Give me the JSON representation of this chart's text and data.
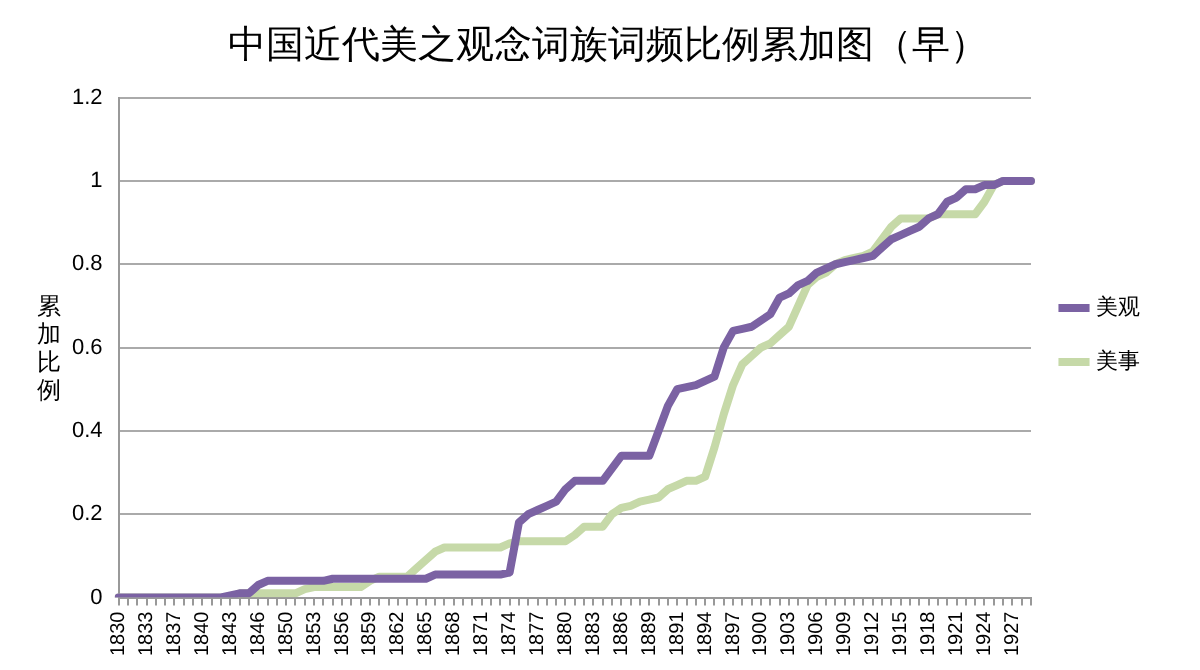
{
  "chart_data": {
    "type": "line",
    "title": "中国近代美之观念词族词频比例累加图（早）",
    "ylabel": "累加比例",
    "categories": [
      "1830",
      null,
      null,
      "1833",
      null,
      null,
      "1837",
      null,
      null,
      "1840",
      null,
      null,
      "1843",
      null,
      null,
      "1846",
      null,
      null,
      "1850",
      null,
      null,
      "1853",
      null,
      null,
      "1856",
      null,
      null,
      "1859",
      null,
      null,
      "1862",
      null,
      null,
      "1865",
      null,
      null,
      "1868",
      null,
      null,
      "1871",
      null,
      null,
      "1874",
      null,
      null,
      "1877",
      null,
      null,
      "1880",
      null,
      null,
      "1883",
      null,
      null,
      "1886",
      null,
      null,
      "1889",
      null,
      null,
      "1891",
      null,
      null,
      "1894",
      null,
      null,
      "1897",
      null,
      null,
      "1900",
      null,
      null,
      "1903",
      null,
      null,
      "1906",
      null,
      null,
      "1909",
      null,
      null,
      "1912",
      null,
      null,
      "1915",
      null,
      null,
      "1918",
      null,
      null,
      "1921",
      null,
      null,
      "1924",
      null,
      null,
      "1927",
      null,
      null
    ],
    "series": [
      {
        "name": "美观",
        "color": "#7b62a3",
        "values": [
          0,
          0,
          0,
          0,
          0,
          0,
          0,
          0,
          0,
          0,
          0,
          0,
          0.005,
          0.01,
          0.01,
          0.03,
          0.04,
          0.04,
          0.04,
          0.04,
          0.04,
          0.04,
          0.04,
          0.045,
          0.045,
          0.045,
          0.045,
          0.045,
          0.045,
          0.045,
          0.045,
          0.045,
          0.045,
          0.045,
          0.055,
          0.055,
          0.055,
          0.055,
          0.055,
          0.055,
          0.055,
          0.055,
          0.06,
          0.18,
          0.2,
          0.21,
          0.22,
          0.23,
          0.26,
          0.28,
          0.28,
          0.28,
          0.28,
          0.31,
          0.34,
          0.34,
          0.34,
          0.34,
          0.4,
          0.46,
          0.5,
          0.505,
          0.51,
          0.52,
          0.53,
          0.6,
          0.64,
          0.645,
          0.65,
          0.665,
          0.68,
          0.72,
          0.73,
          0.75,
          0.76,
          0.78,
          0.79,
          0.8,
          0.805,
          0.81,
          0.815,
          0.82,
          0.84,
          0.86,
          0.87,
          0.88,
          0.89,
          0.91,
          0.92,
          0.95,
          0.96,
          0.98,
          0.98,
          0.99,
          0.99,
          1,
          1,
          1,
          1
        ]
      },
      {
        "name": "美事",
        "color": "#c6d9a8",
        "values": [
          0,
          0,
          0,
          0,
          0,
          0,
          0,
          0,
          0,
          0,
          0,
          0,
          0,
          0.01,
          0.01,
          0.01,
          0.01,
          0.01,
          0.01,
          0.01,
          0.02,
          0.025,
          0.025,
          0.025,
          0.025,
          0.025,
          0.025,
          0.04,
          0.05,
          0.05,
          0.05,
          0.05,
          0.07,
          0.09,
          0.11,
          0.12,
          0.12,
          0.12,
          0.12,
          0.12,
          0.12,
          0.12,
          0.13,
          0.135,
          0.135,
          0.135,
          0.135,
          0.135,
          0.135,
          0.15,
          0.17,
          0.17,
          0.17,
          0.2,
          0.215,
          0.22,
          0.23,
          0.235,
          0.24,
          0.26,
          0.27,
          0.28,
          0.28,
          0.29,
          0.36,
          0.44,
          0.51,
          0.56,
          0.58,
          0.6,
          0.61,
          0.63,
          0.65,
          0.7,
          0.75,
          0.77,
          0.78,
          0.8,
          0.81,
          0.815,
          0.82,
          0.83,
          0.86,
          0.89,
          0.91,
          0.91,
          0.91,
          0.91,
          0.92,
          0.92,
          0.92,
          0.92,
          0.92,
          0.95,
          0.99,
          1,
          1,
          1,
          1
        ]
      }
    ],
    "ylim": [
      0,
      1.2
    ],
    "yticks": [
      0,
      0.2,
      0.4,
      0.6,
      0.8,
      1,
      1.2
    ],
    "grid": "y",
    "legend": "right",
    "marker": "none",
    "line_style": "solid"
  }
}
